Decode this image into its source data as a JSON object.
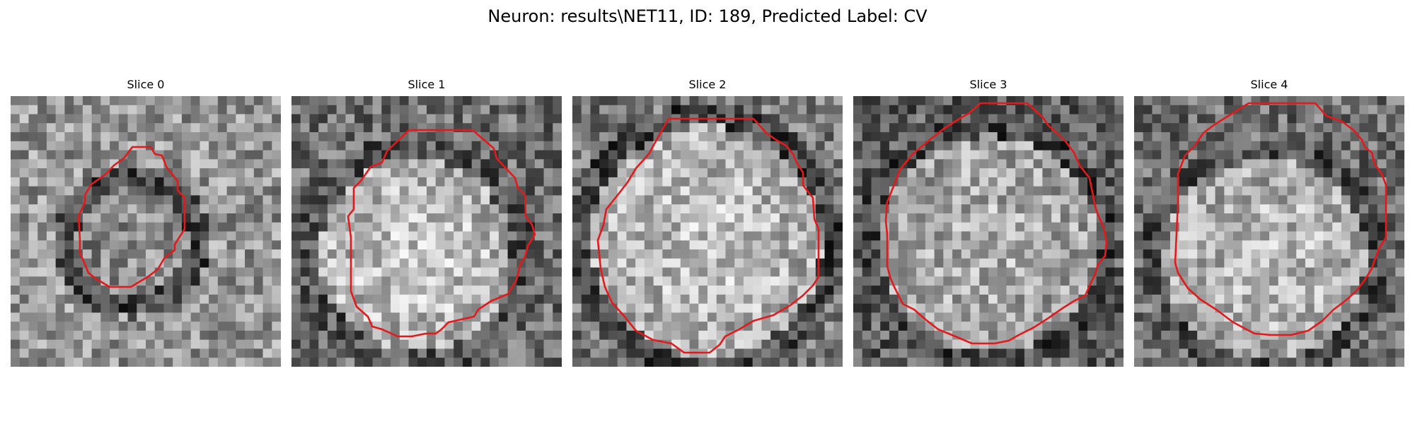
{
  "figure": {
    "title": "Neuron: results\\NET11, ID: 189, Predicted Label: CV"
  },
  "panels": [
    {
      "label": "Slice 0",
      "outline_color": "#e31a1c"
    },
    {
      "label": "Slice 1",
      "outline_color": "#e31a1c"
    },
    {
      "label": "Slice 2",
      "outline_color": "#e31a1c"
    },
    {
      "label": "Slice 3",
      "outline_color": "#e31a1c"
    },
    {
      "label": "Slice 4",
      "outline_color": "#e31a1c"
    }
  ],
  "colormap": "grayscale"
}
